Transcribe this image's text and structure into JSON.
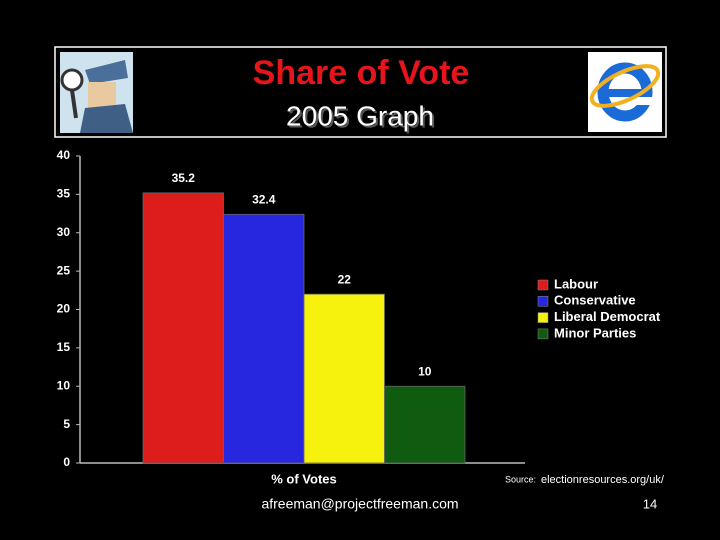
{
  "chart_data": {
    "type": "bar",
    "title": "Share of Vote",
    "subtitle": "2005 Graph",
    "categories": [
      "% of Votes"
    ],
    "series": [
      {
        "name": "Labour",
        "color": "#dd1c1c",
        "values": [
          35.2
        ]
      },
      {
        "name": "Conservative",
        "color": "#2727e0",
        "values": [
          32.4
        ]
      },
      {
        "name": "Liberal Democrat",
        "color": "#f7f20d",
        "values": [
          22
        ]
      },
      {
        "name": "Minor Parties",
        "color": "#0f5c10",
        "values": [
          10
        ]
      }
    ],
    "ylim": [
      0,
      40
    ],
    "yticks": [
      0,
      5,
      10,
      15,
      20,
      25,
      30,
      35,
      40
    ],
    "legend": "right",
    "source_label": "Source:",
    "source": "electionresources.org/uk/",
    "footer": "afreeman@projectfreeman.com",
    "page_number": "14"
  }
}
